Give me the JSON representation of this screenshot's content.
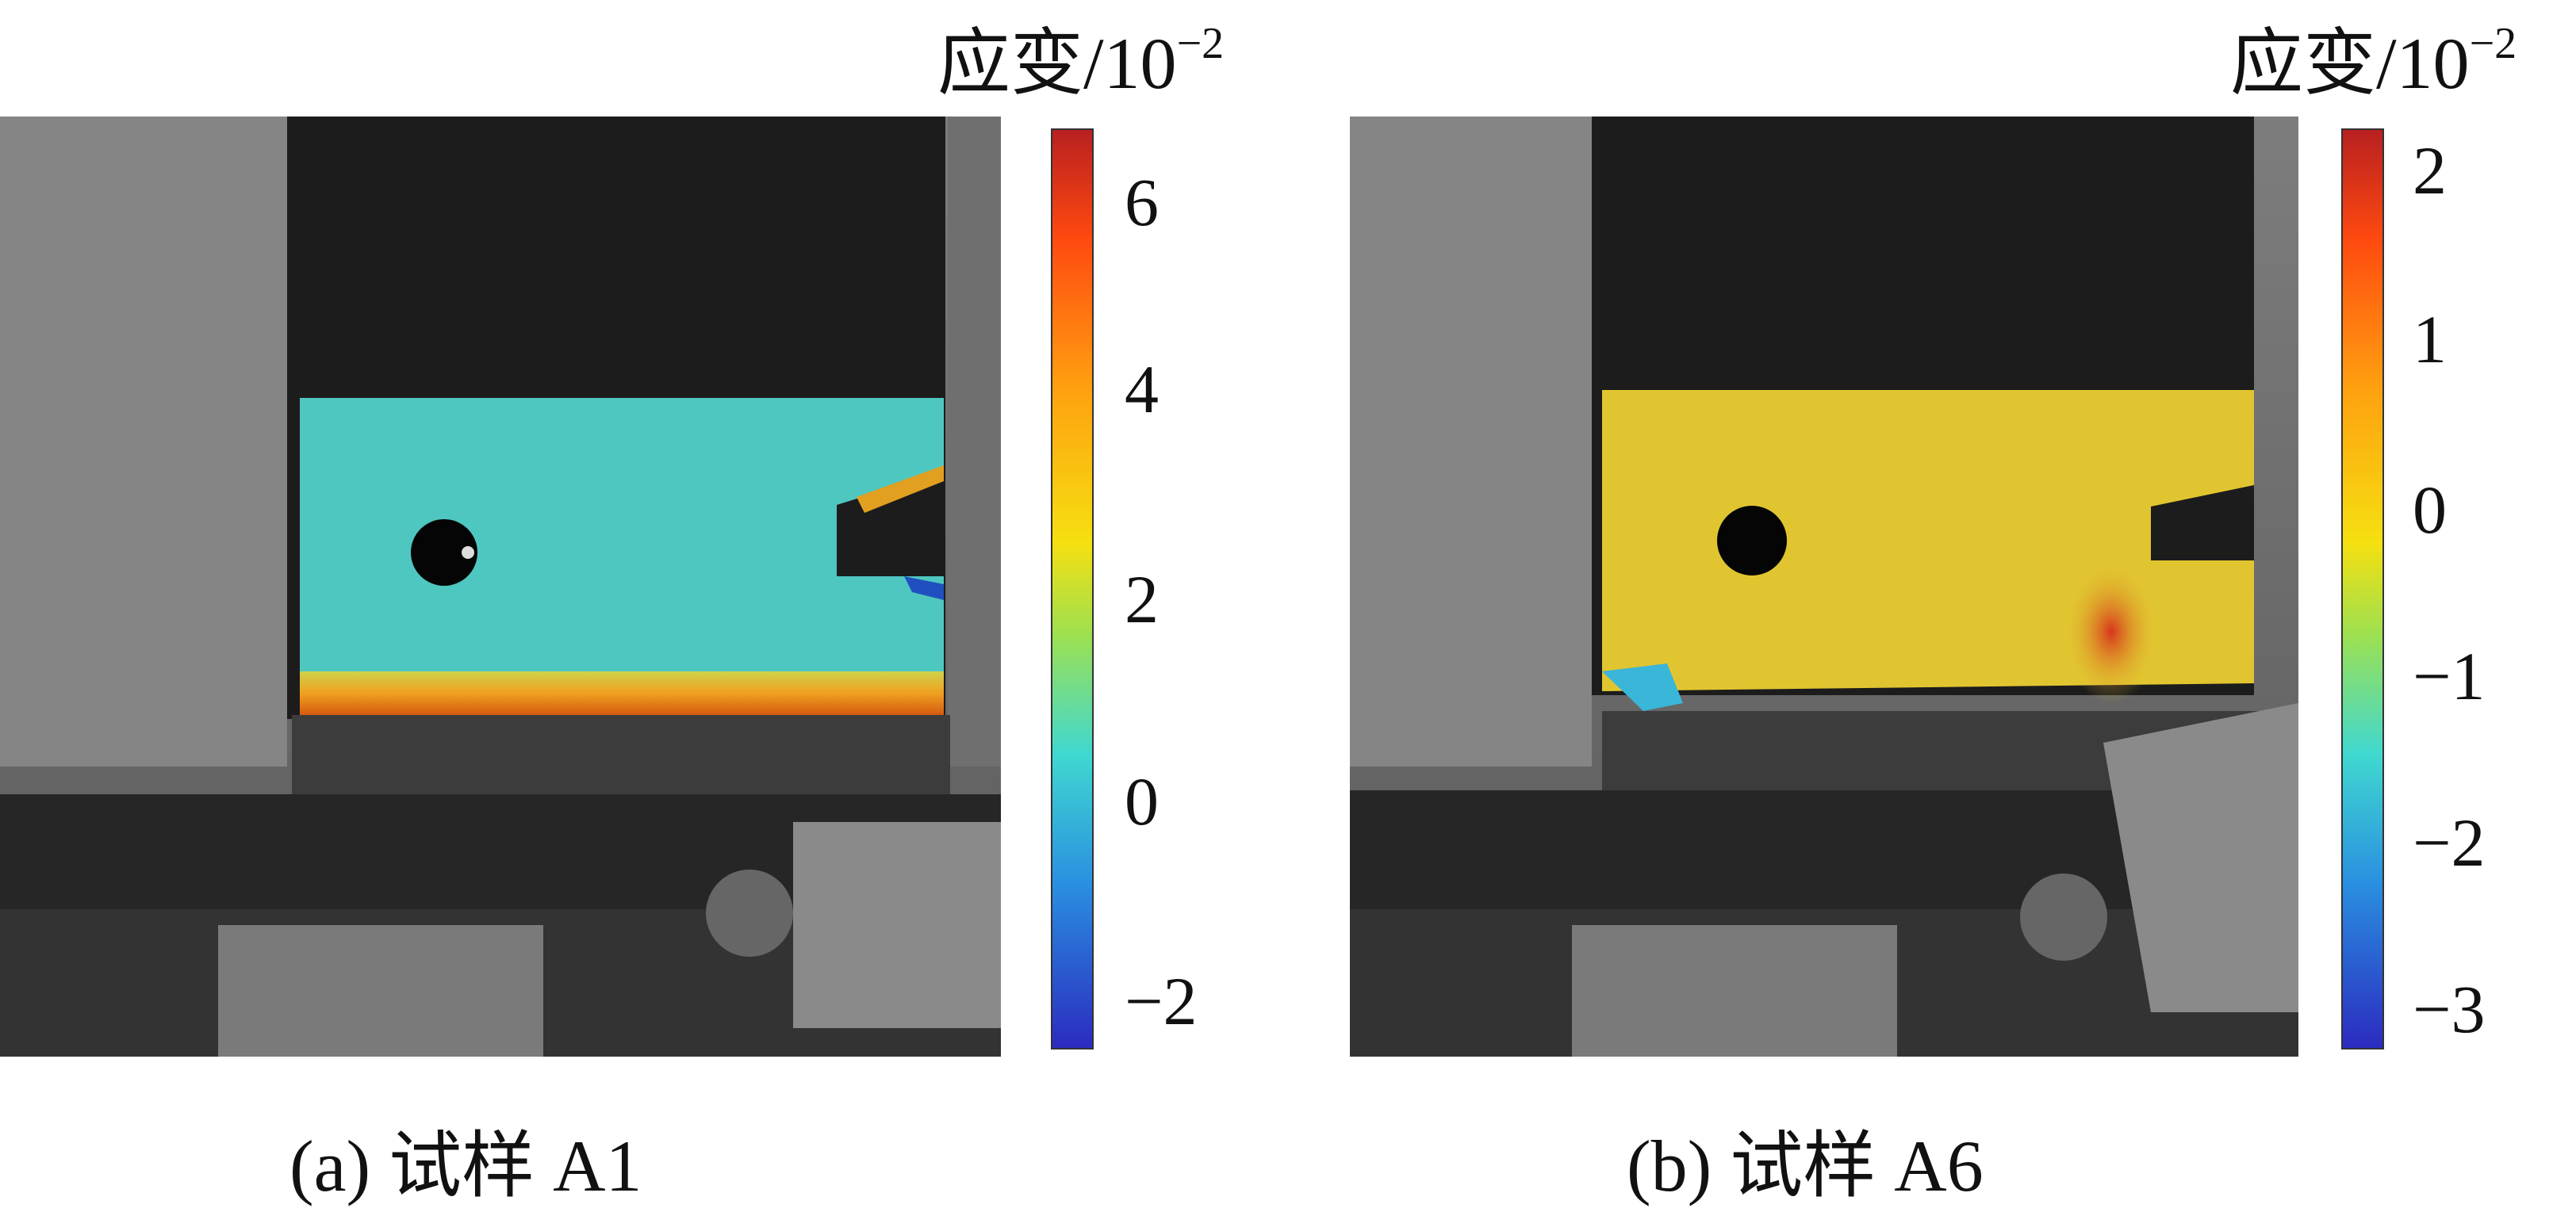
{
  "panels": [
    {
      "id": "a",
      "caption": "(a) 试样 A1",
      "colorbar": {
        "title": "应变/10",
        "exponent": "−2",
        "ticks": [
          "6",
          "4",
          "2",
          "0",
          "−2"
        ],
        "top_color": "#b82020",
        "bottom_color": "#2b2bc0"
      },
      "overlay_color": "#4ec7c0"
    },
    {
      "id": "b",
      "caption": "(b) 试样 A6",
      "colorbar": {
        "title": "应变/10",
        "exponent": "−2",
        "ticks": [
          "2",
          "1",
          "0",
          "−1",
          "−2",
          "−3"
        ],
        "top_color": "#b82020",
        "bottom_color": "#2b2bc0"
      },
      "overlay_color": "#e1c530"
    }
  ]
}
